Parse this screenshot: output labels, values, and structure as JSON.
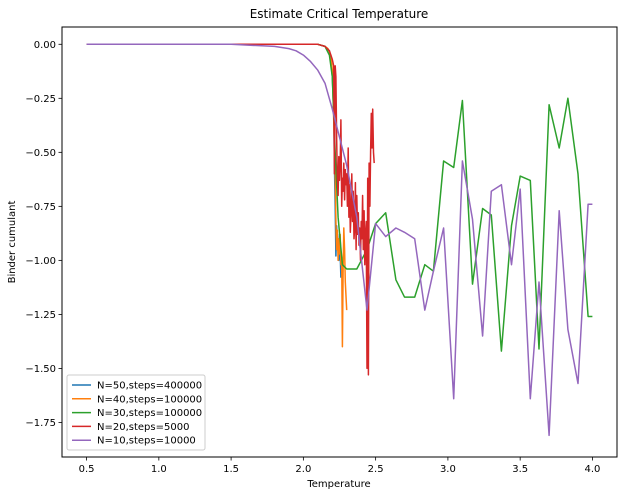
{
  "chart_data": {
    "type": "line",
    "title": "Estimate Critical Temperature",
    "xlabel": "Temperature",
    "ylabel": "Binder cumulant",
    "xlim": [
      0.33,
      4.17
    ],
    "ylim": [
      -1.91,
      0.08
    ],
    "xticks": [
      0.5,
      1.0,
      1.5,
      2.0,
      2.5,
      3.0,
      3.5,
      4.0
    ],
    "xtick_labels": [
      "0.5",
      "1.0",
      "1.5",
      "2.0",
      "2.5",
      "3.0",
      "3.5",
      "4.0"
    ],
    "yticks": [
      0.0,
      -0.25,
      -0.5,
      -0.75,
      -1.0,
      -1.25,
      -1.5,
      -1.75
    ],
    "ytick_labels": [
      "0.00",
      "−0.25",
      "−0.50",
      "−0.75",
      "−1.00",
      "−1.25",
      "−1.50",
      "−1.75"
    ],
    "grid": false,
    "legend_position": "lower-left",
    "series": [
      {
        "name": "N=50,steps=400000",
        "color": "#1f77b4",
        "x": [
          0.5,
          1.0,
          1.5,
          2.0,
          2.1,
          2.15,
          2.18,
          2.19,
          2.2,
          2.21,
          2.215,
          2.22,
          2.225,
          2.23,
          2.235,
          2.24,
          2.245,
          2.25,
          2.255,
          2.26
        ],
        "y": [
          0.0,
          0.0,
          0.0,
          0.0,
          0.0,
          -0.01,
          -0.03,
          -0.07,
          -0.15,
          -0.32,
          -0.55,
          -0.75,
          -0.98,
          -0.84,
          -0.95,
          -0.9,
          -1.0,
          -0.88,
          -0.97,
          -1.08
        ]
      },
      {
        "name": "N=40,steps=100000",
        "color": "#ff7f0e",
        "x": [
          0.5,
          1.0,
          1.5,
          2.0,
          2.1,
          2.15,
          2.17,
          2.19,
          2.2,
          2.21,
          2.22,
          2.225,
          2.23,
          2.235,
          2.24,
          2.245,
          2.25,
          2.255,
          2.26,
          2.265,
          2.27,
          2.275,
          2.28,
          2.285,
          2.29,
          2.3
        ],
        "y": [
          0.0,
          0.0,
          0.0,
          0.0,
          0.0,
          -0.01,
          -0.02,
          -0.05,
          -0.12,
          -0.35,
          -0.6,
          -0.82,
          -0.95,
          -0.86,
          -1.0,
          -0.9,
          -0.97,
          -0.88,
          -1.02,
          -1.0,
          -1.4,
          -1.05,
          -0.85,
          -0.95,
          -1.1,
          -1.23
        ]
      },
      {
        "name": "N=30,steps=100000",
        "color": "#2ca02c",
        "x": [
          0.5,
          1.0,
          1.5,
          2.0,
          2.1,
          2.15,
          2.18,
          2.2,
          2.22,
          2.24,
          2.27,
          2.3,
          2.37,
          2.44,
          2.5,
          2.57,
          2.64,
          2.7,
          2.77,
          2.84,
          2.9,
          2.97,
          3.04,
          3.1,
          3.17,
          3.24,
          3.3,
          3.37,
          3.44,
          3.5,
          3.57,
          3.63,
          3.7,
          3.77,
          3.83,
          3.9,
          3.97,
          4.0
        ],
        "y": [
          0.0,
          0.0,
          0.0,
          0.0,
          0.0,
          -0.01,
          -0.05,
          -0.15,
          -0.5,
          -0.8,
          -1.02,
          -1.04,
          -1.04,
          -0.95,
          -0.83,
          -0.78,
          -1.09,
          -1.17,
          -1.17,
          -1.02,
          -1.05,
          -0.54,
          -0.57,
          -0.26,
          -1.11,
          -0.76,
          -0.79,
          -1.42,
          -0.84,
          -0.61,
          -0.63,
          -1.41,
          -0.28,
          -0.48,
          -0.25,
          -0.6,
          -1.26,
          -1.26
        ]
      },
      {
        "name": "N=20,steps=5000",
        "color": "#d62728",
        "x": [
          0.5,
          1.0,
          1.5,
          2.0,
          2.1,
          2.15,
          2.18,
          2.2,
          2.21,
          2.215,
          2.22,
          2.225,
          2.23,
          2.235,
          2.24,
          2.245,
          2.25,
          2.255,
          2.26,
          2.265,
          2.27,
          2.275,
          2.28,
          2.285,
          2.29,
          2.295,
          2.3,
          2.305,
          2.31,
          2.315,
          2.32,
          2.325,
          2.33,
          2.335,
          2.34,
          2.345,
          2.35,
          2.355,
          2.36,
          2.365,
          2.37,
          2.375,
          2.38,
          2.385,
          2.39,
          2.395,
          2.4,
          2.405,
          2.41,
          2.415,
          2.42,
          2.425,
          2.43,
          2.435,
          2.44,
          2.445,
          2.45,
          2.455,
          2.46,
          2.465,
          2.47,
          2.475,
          2.48,
          2.485,
          2.49
        ],
        "y": [
          0.0,
          0.0,
          0.0,
          0.0,
          0.0,
          -0.01,
          -0.03,
          -0.07,
          -0.1,
          -0.6,
          -0.1,
          -0.15,
          -0.42,
          -0.62,
          -0.7,
          -0.52,
          -0.63,
          -0.55,
          -0.35,
          -0.75,
          -0.62,
          -0.68,
          -0.55,
          -0.72,
          -0.58,
          -0.65,
          -0.6,
          -0.75,
          -0.48,
          -0.8,
          -0.65,
          -0.87,
          -0.77,
          -0.6,
          -0.82,
          -0.68,
          -0.9,
          -0.85,
          -0.64,
          -0.95,
          -0.7,
          -0.88,
          -0.78,
          -0.93,
          -0.85,
          -1.0,
          -0.82,
          -0.9,
          -0.7,
          -0.95,
          -0.77,
          -1.02,
          -0.88,
          -0.82,
          -1.5,
          -0.62,
          -1.53,
          -0.55,
          -0.75,
          -0.5,
          -0.32,
          -0.48,
          -0.3,
          -0.5,
          -0.55
        ]
      },
      {
        "name": "N=10,steps=10000",
        "color": "#9467bd",
        "x": [
          0.5,
          1.0,
          1.5,
          1.8,
          1.9,
          1.95,
          2.0,
          2.05,
          2.1,
          2.15,
          2.2,
          2.25,
          2.3,
          2.37,
          2.44,
          2.5,
          2.57,
          2.64,
          2.7,
          2.77,
          2.84,
          2.9,
          2.97,
          3.04,
          3.1,
          3.17,
          3.24,
          3.3,
          3.37,
          3.44,
          3.5,
          3.57,
          3.63,
          3.7,
          3.77,
          3.83,
          3.9,
          3.97,
          4.0
        ],
        "y": [
          0.0,
          0.0,
          0.0,
          -0.01,
          -0.02,
          -0.03,
          -0.05,
          -0.08,
          -0.12,
          -0.18,
          -0.3,
          -0.43,
          -0.56,
          -0.8,
          -1.23,
          -0.83,
          -0.89,
          -0.85,
          -0.87,
          -0.9,
          -1.23,
          -1.05,
          -0.85,
          -1.64,
          -0.54,
          -0.81,
          -1.35,
          -0.68,
          -0.65,
          -1.02,
          -0.67,
          -1.64,
          -1.1,
          -1.81,
          -0.77,
          -1.32,
          -1.57,
          -0.74,
          -0.74
        ]
      }
    ]
  }
}
